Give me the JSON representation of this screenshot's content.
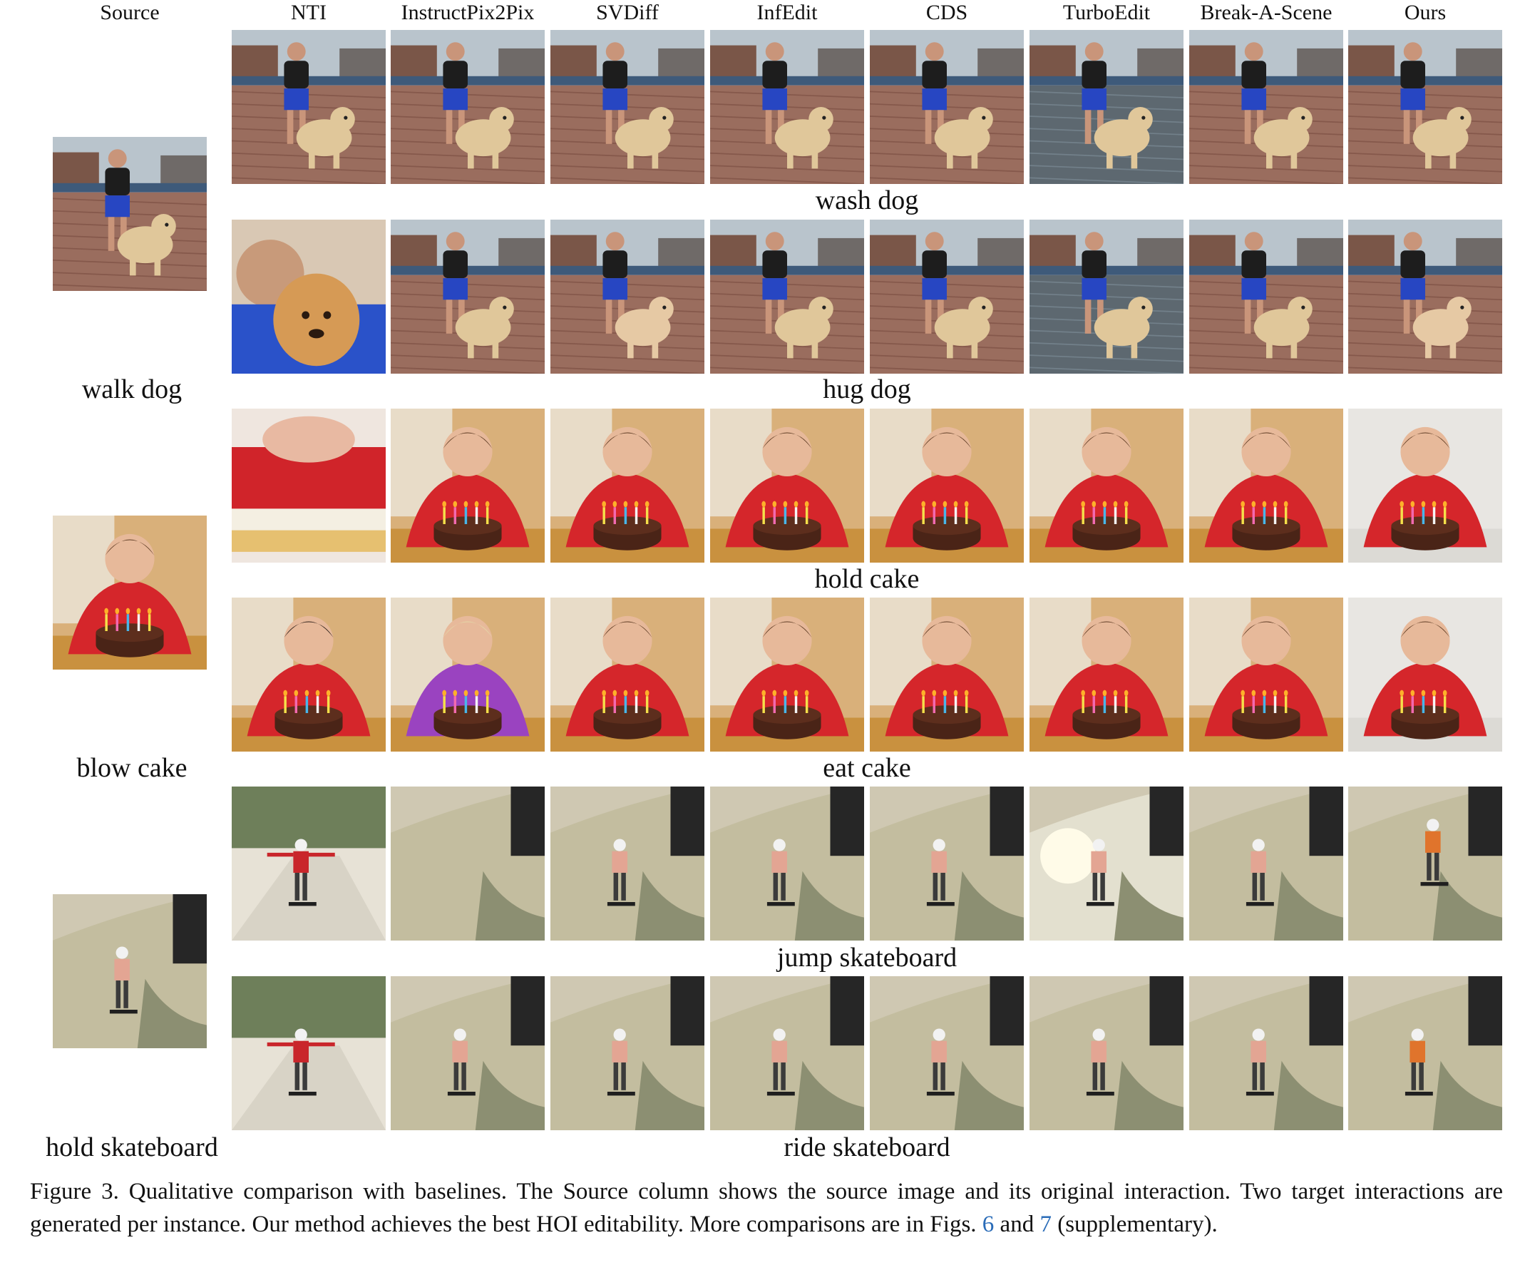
{
  "columns": {
    "source": "Source",
    "methods": [
      "NTI",
      "InstructPix2Pix",
      "SVDiff",
      "InfEdit",
      "CDS",
      "TurboEdit",
      "Break-A-Scene",
      "Ours"
    ]
  },
  "instances": [
    {
      "source_label": "walk dog",
      "source_image": "photo-dog-walk",
      "targets": [
        {
          "label": "wash dog",
          "images": [
            "photo-dog",
            "photo-dog",
            "photo-dog",
            "photo-dog",
            "photo-dog",
            "photo-dog-flood",
            "photo-dog",
            "photo-dog"
          ]
        },
        {
          "label": "hug dog",
          "images": [
            "photo-dog-hug-closeup",
            "photo-dog",
            "photo-dog-hug",
            "photo-dog",
            "photo-dog",
            "photo-dog-flood",
            "photo-dog",
            "photo-dog-hug"
          ]
        }
      ]
    },
    {
      "source_label": "blow cake",
      "source_image": "photo-boy-cake",
      "targets": [
        {
          "label": "hold cake",
          "images": [
            "photo-cake-slice",
            "photo-boy-cake",
            "photo-boy-cake",
            "photo-boy-cake",
            "photo-boy-cake",
            "photo-boy-cake",
            "photo-boy-cake",
            "photo-boy-cake-kitchen"
          ]
        },
        {
          "label": "eat cake",
          "images": [
            "photo-woman-cake",
            "photo-boy-cake-purple",
            "photo-boy-cake",
            "photo-boy-cake",
            "photo-boy-cake",
            "photo-boy-cake",
            "photo-boy-cake",
            "photo-boy-cake-kitchen"
          ]
        }
      ]
    },
    {
      "source_label": "hold skateboard",
      "source_image": "photo-skatepark",
      "targets": [
        {
          "label": "jump skateboard",
          "images": [
            "photo-skater-road",
            "photo-skatepark-empty",
            "photo-skatepark",
            "photo-skatepark",
            "photo-skatepark",
            "photo-skater-sun",
            "photo-skatepark",
            "photo-skater-jump"
          ]
        },
        {
          "label": "ride skateboard",
          "images": [
            "photo-skater-road",
            "photo-skatepark",
            "photo-skatepark",
            "photo-skatepark",
            "photo-skatepark",
            "photo-skatepark",
            "photo-skatepark",
            "photo-skater-ride"
          ]
        }
      ]
    }
  ],
  "caption": {
    "prefix": "Figure 3. Qualitative comparison with baselines. The Source column shows the source image and its original interaction. Two target interactions are generated per instance. Our method achieves the best HOI editability. More comparisons are in Figs.",
    "ref1": "6",
    "and": "and",
    "ref2": "7",
    "suffix": "(supplementary)."
  }
}
